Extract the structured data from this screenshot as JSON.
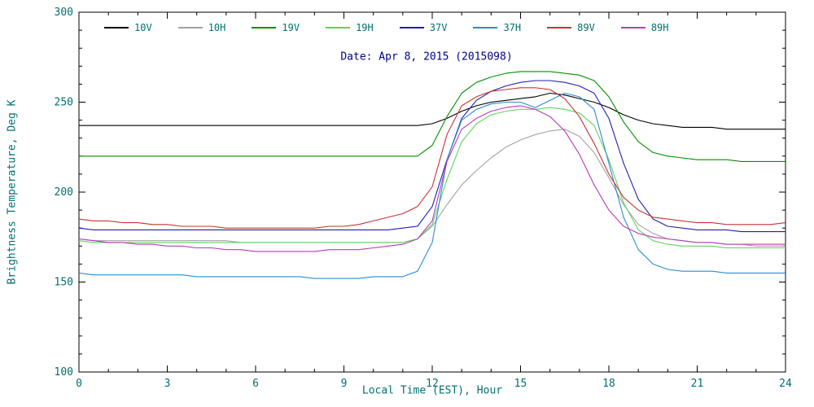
{
  "chart_data": {
    "type": "line",
    "title": "Date: Apr 8, 2015 (2015098)",
    "xlabel": "Local Time (EST), Hour",
    "ylabel": "Brightness Temperature, Deg K",
    "xlim": [
      0,
      24
    ],
    "ylim": [
      100,
      300
    ],
    "xticks_major": [
      0,
      3,
      6,
      9,
      12,
      15,
      18,
      21,
      24
    ],
    "xtick_minor_step": 1,
    "yticks_major": [
      100,
      150,
      200,
      250,
      300
    ],
    "ytick_minor_step": 10,
    "legend_position": "top-inside",
    "grid": false,
    "axis_text_color": "#007070",
    "title_color": "#00008b",
    "frame_color": "#000000",
    "x": [
      0,
      0.5,
      1,
      1.5,
      2,
      2.5,
      3,
      3.5,
      4,
      4.5,
      5,
      5.5,
      6,
      6.5,
      7,
      7.5,
      8,
      8.5,
      9,
      9.5,
      10,
      10.5,
      11,
      11.5,
      12,
      12.5,
      13,
      13.5,
      14,
      14.5,
      15,
      15.5,
      16,
      16.5,
      17,
      17.5,
      18,
      18.5,
      19,
      19.5,
      20,
      20.5,
      21,
      21.5,
      22,
      22.5,
      23,
      23.5,
      24
    ],
    "series": [
      {
        "name": "10V",
        "color": "#000000",
        "values": [
          237,
          237,
          237,
          237,
          237,
          237,
          237,
          237,
          237,
          237,
          237,
          237,
          237,
          237,
          237,
          237,
          237,
          237,
          237,
          237,
          237,
          237,
          237,
          237,
          238,
          241,
          245,
          248,
          250,
          251,
          252,
          253,
          255,
          254,
          252,
          250,
          247,
          243,
          240,
          238,
          237,
          236,
          236,
          236,
          235,
          235,
          235,
          235,
          235
        ]
      },
      {
        "name": "10H",
        "color": "#a3a3a3",
        "values": [
          174,
          173,
          173,
          173,
          173,
          173,
          173,
          173,
          173,
          173,
          173,
          172,
          172,
          172,
          172,
          172,
          172,
          172,
          172,
          172,
          172,
          172,
          172,
          174,
          181,
          193,
          204,
          212,
          219,
          225,
          229,
          232,
          234,
          235,
          231,
          222,
          208,
          193,
          182,
          177,
          174,
          173,
          172,
          172,
          171,
          171,
          170,
          170,
          170
        ]
      },
      {
        "name": "19V",
        "color": "#008f00",
        "values": [
          220,
          220,
          220,
          220,
          220,
          220,
          220,
          220,
          220,
          220,
          220,
          220,
          220,
          220,
          220,
          220,
          220,
          220,
          220,
          220,
          220,
          220,
          220,
          220,
          226,
          242,
          255,
          261,
          264,
          266,
          267,
          267,
          267,
          266,
          265,
          262,
          253,
          239,
          228,
          222,
          220,
          219,
          218,
          218,
          218,
          217,
          217,
          217,
          217
        ]
      },
      {
        "name": "19H",
        "color": "#5fd35f",
        "values": [
          173,
          172,
          172,
          172,
          172,
          172,
          172,
          172,
          172,
          172,
          172,
          172,
          172,
          172,
          172,
          172,
          172,
          172,
          172,
          172,
          172,
          172,
          172,
          174,
          182,
          207,
          228,
          238,
          243,
          245,
          246,
          246,
          247,
          246,
          244,
          237,
          218,
          194,
          179,
          173,
          171,
          170,
          170,
          170,
          169,
          169,
          169,
          169,
          169
        ]
      },
      {
        "name": "37V",
        "color": "#2020b0",
        "values": [
          180,
          179,
          179,
          179,
          179,
          179,
          179,
          179,
          179,
          179,
          179,
          179,
          179,
          179,
          179,
          179,
          179,
          179,
          179,
          179,
          179,
          179,
          180,
          181,
          192,
          218,
          241,
          251,
          256,
          259,
          261,
          262,
          262,
          261,
          259,
          255,
          241,
          216,
          196,
          185,
          181,
          180,
          179,
          179,
          179,
          178,
          178,
          178,
          178
        ]
      },
      {
        "name": "37H",
        "color": "#2b8cce",
        "values": [
          155,
          154,
          154,
          154,
          154,
          154,
          154,
          154,
          153,
          153,
          153,
          153,
          153,
          153,
          153,
          153,
          152,
          152,
          152,
          152,
          153,
          153,
          153,
          156,
          172,
          218,
          240,
          246,
          249,
          250,
          250,
          247,
          251,
          255,
          253,
          246,
          216,
          186,
          168,
          160,
          157,
          156,
          156,
          156,
          155,
          155,
          155,
          155,
          155
        ]
      },
      {
        "name": "89V",
        "color": "#c43535",
        "values": [
          185,
          184,
          184,
          183,
          183,
          182,
          182,
          181,
          181,
          181,
          180,
          180,
          180,
          180,
          180,
          180,
          180,
          181,
          181,
          182,
          184,
          186,
          188,
          192,
          203,
          232,
          248,
          253,
          256,
          257,
          258,
          258,
          257,
          252,
          242,
          227,
          210,
          197,
          190,
          186,
          185,
          184,
          183,
          183,
          182,
          182,
          182,
          182,
          183
        ]
      },
      {
        "name": "89H",
        "color": "#b93ab9",
        "values": [
          174,
          173,
          172,
          172,
          171,
          171,
          170,
          170,
          169,
          169,
          168,
          168,
          167,
          167,
          167,
          167,
          167,
          168,
          168,
          168,
          169,
          170,
          171,
          174,
          184,
          217,
          235,
          241,
          245,
          247,
          248,
          246,
          242,
          234,
          221,
          204,
          190,
          181,
          177,
          175,
          174,
          173,
          172,
          172,
          171,
          171,
          171,
          171,
          171
        ]
      }
    ]
  }
}
